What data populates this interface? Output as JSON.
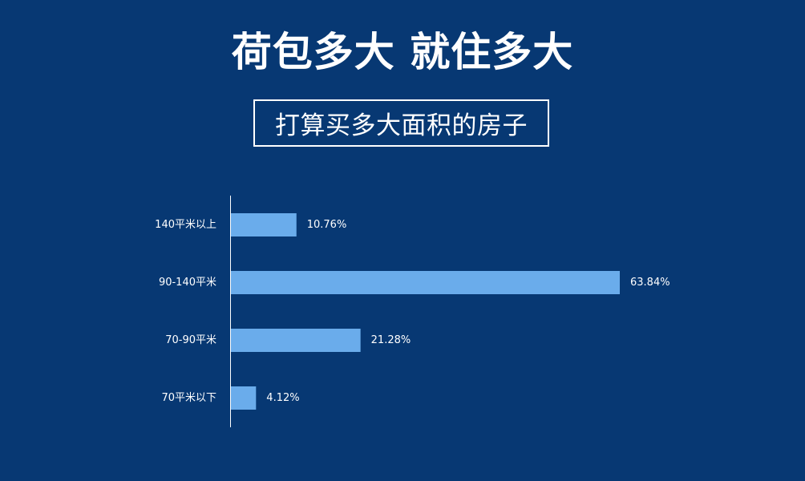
{
  "header": {
    "headline": "荷包多大 就住多大",
    "subtitle": "打算买多大面积的房子"
  },
  "colors": {
    "background": "#073873",
    "bar": "#6aaceb",
    "text": "#ffffff",
    "axis": "#ffffff"
  },
  "chart_data": {
    "type": "bar",
    "orientation": "horizontal",
    "title": "",
    "xlabel": "",
    "ylabel": "",
    "grid": false,
    "categories": [
      "140平米以上",
      "90-140平米",
      "70-90平米",
      "70平米以下"
    ],
    "values": [
      10.76,
      63.84,
      21.28,
      4.12
    ],
    "value_labels": [
      "10.76%",
      "63.84%",
      "21.28%",
      "4.12%"
    ],
    "unit": "%",
    "xlim": [
      0,
      63.84
    ]
  }
}
